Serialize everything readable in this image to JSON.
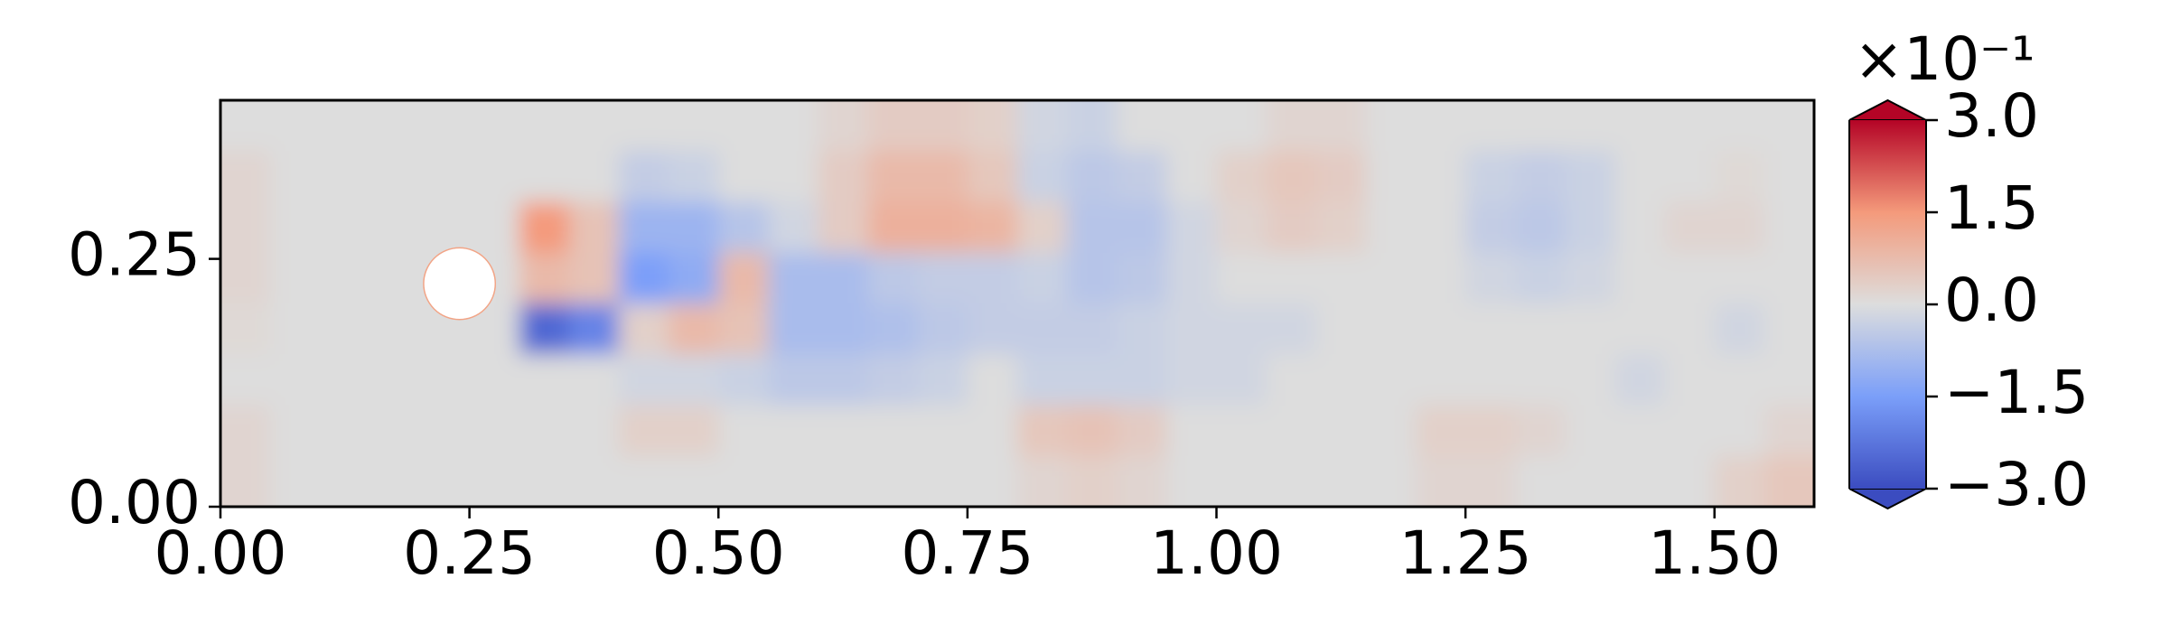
{
  "chart_data": {
    "type": "heatmap",
    "xlim": [
      0,
      1.6
    ],
    "ylim": [
      0,
      0.41
    ],
    "xticks": [
      {
        "value": 0,
        "label": "0.00"
      },
      0.25,
      {
        "value": 0.5,
        "label": "0.50"
      },
      0.75,
      {
        "value": 1,
        "label": "1.00"
      },
      1.25,
      {
        "value": 1.5,
        "label": "1.50"
      }
    ],
    "yticks": [
      {
        "value": 0,
        "label": "0.00"
      },
      0.25
    ],
    "colormap": "coolwarm",
    "clim": [
      -3,
      3
    ],
    "colorbar_ticks": [
      {
        "value": -3,
        "label": "−3.0"
      },
      {
        "value": -1.5,
        "label": "−1.5"
      },
      {
        "value": 0,
        "label": "0.0"
      },
      {
        "value": 1.5,
        "label": "1.5"
      },
      {
        "value": 3,
        "label": "3.0"
      }
    ],
    "colorbar_offset": "×10⁻¹",
    "obstacle": {
      "x": 0.24,
      "y": 0.225,
      "r": 0.036
    },
    "z": [
      [
        0,
        0,
        0,
        0,
        0,
        0,
        0,
        0,
        0,
        0,
        0,
        0,
        0.2,
        0.4,
        0.4,
        0.3,
        -0.2,
        -0.3,
        0,
        0,
        0,
        0.2,
        0.2,
        0,
        0,
        0,
        0,
        0,
        0,
        0,
        0,
        0
      ],
      [
        0.2,
        0,
        0,
        0,
        0,
        0,
        0,
        0,
        -0.4,
        -0.3,
        0,
        0,
        0.4,
        0.8,
        0.8,
        0.5,
        -0.3,
        -0.5,
        -0.4,
        0,
        0.3,
        0.5,
        0.4,
        0,
        0,
        -0.3,
        -0.4,
        -0.3,
        0,
        0,
        0.1,
        0
      ],
      [
        0.2,
        0,
        0,
        0,
        0,
        0,
        1.5,
        0.6,
        -1.0,
        -1.0,
        -0.6,
        -0.2,
        0.4,
        1.0,
        1.0,
        0.9,
        0.3,
        -0.6,
        -0.6,
        -0.2,
        0.2,
        0.4,
        0.3,
        0,
        0,
        -0.4,
        -0.5,
        -0.3,
        0,
        0.2,
        0.2,
        0
      ],
      [
        0.2,
        0,
        0,
        0,
        0,
        0,
        0.8,
        0.6,
        -1.5,
        -1.2,
        0.8,
        -0.8,
        -0.8,
        -0.5,
        -0.4,
        -0.4,
        -0.3,
        -0.6,
        -0.5,
        -0.2,
        0,
        0,
        0,
        0,
        0,
        -0.2,
        -0.3,
        -0.2,
        0,
        0,
        0,
        0
      ],
      [
        0.1,
        0,
        0,
        0,
        0,
        0,
        -2.5,
        -2.0,
        0.3,
        0.8,
        0.6,
        -0.8,
        -0.8,
        -0.7,
        -0.5,
        -0.4,
        -0.4,
        -0.4,
        -0.3,
        -0.2,
        -0.2,
        -0.2,
        0,
        0,
        0,
        0,
        0,
        0,
        0,
        0,
        -0.2,
        0
      ],
      [
        0,
        0,
        0,
        0,
        0,
        0,
        0,
        0,
        -0.2,
        -0.2,
        -0.3,
        -0.5,
        -0.5,
        -0.4,
        -0.3,
        0,
        -0.3,
        -0.3,
        -0.3,
        -0.2,
        -0.2,
        0,
        0,
        0,
        0,
        0,
        0,
        0,
        -0.2,
        0,
        0,
        0
      ],
      [
        0.2,
        0,
        0,
        0,
        0,
        0,
        0,
        0,
        0.3,
        0.3,
        0,
        0,
        0,
        0,
        0,
        0,
        0.5,
        0.6,
        0.4,
        0,
        0,
        0,
        0,
        0,
        0.3,
        0.3,
        0.2,
        0,
        0,
        0,
        0,
        0.2
      ],
      [
        0.2,
        0,
        0,
        0,
        0,
        0,
        0,
        0,
        0,
        0,
        0,
        0,
        0,
        0,
        0,
        0,
        0.2,
        0.3,
        0.2,
        0,
        0,
        0,
        0,
        0,
        0.2,
        0.2,
        0,
        0,
        0,
        0,
        0.3,
        0.5
      ]
    ]
  }
}
